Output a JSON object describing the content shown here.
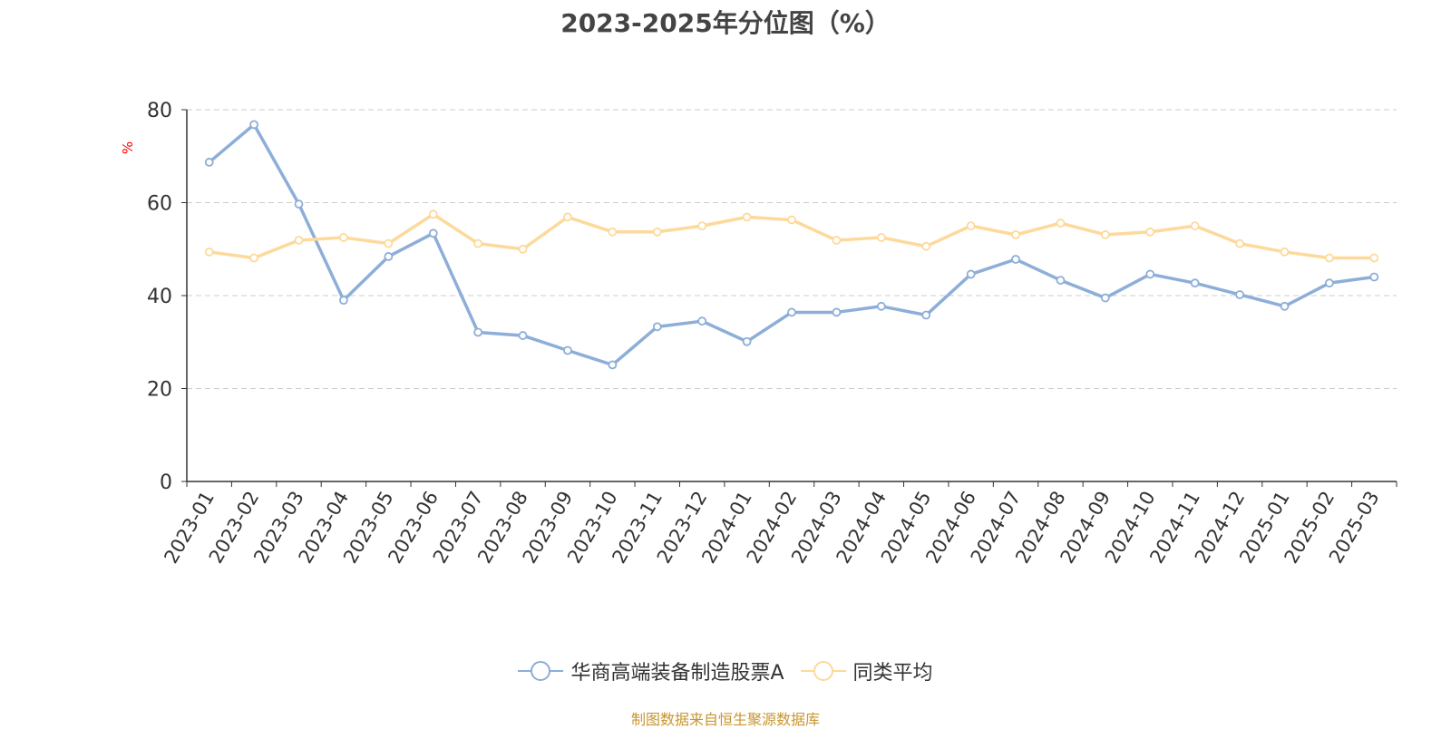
{
  "chart_data": {
    "type": "line",
    "title": "2023-2025年分位图（%）",
    "ylabel": "%",
    "ylim": [
      0,
      80
    ],
    "yticks": [
      "0",
      "20",
      "40",
      "60",
      "80"
    ],
    "grid": true,
    "legend_position": "bottom",
    "categories": [
      "2023-01",
      "2023-02",
      "2023-03",
      "2023-04",
      "2023-05",
      "2023-06",
      "2023-07",
      "2023-08",
      "2023-09",
      "2023-10",
      "2023-11",
      "2023-12",
      "2024-01",
      "2024-02",
      "2024-03",
      "2024-04",
      "2024-05",
      "2024-06",
      "2024-07",
      "2024-08",
      "2024-09",
      "2024-10",
      "2024-11",
      "2024-12",
      "2025-01",
      "2025-02",
      "2025-03"
    ],
    "series": [
      {
        "name": "华商高端装备制造股票A",
        "color": "#8daed8",
        "values": [
          68.7,
          76.8,
          59.7,
          39.0,
          48.4,
          53.4,
          32.1,
          31.4,
          28.2,
          25.1,
          33.3,
          34.5,
          30.1,
          36.4,
          36.4,
          37.7,
          35.8,
          44.6,
          47.8,
          43.3,
          39.5,
          44.6,
          42.7,
          40.2,
          37.7,
          42.7,
          44.0
        ]
      },
      {
        "name": "同类平均",
        "color": "#fdd99b",
        "values": [
          49.4,
          48.1,
          51.9,
          52.5,
          51.2,
          57.5,
          51.2,
          50.0,
          56.9,
          53.7,
          53.7,
          55.0,
          56.9,
          56.3,
          51.9,
          52.5,
          50.6,
          55.0,
          53.1,
          55.6,
          53.1,
          53.7,
          55.0,
          51.2,
          49.4,
          48.1,
          48.1
        ]
      }
    ]
  },
  "footer": {
    "source": "制图数据来自恒生聚源数据库"
  },
  "colors": {
    "axis": "#333333",
    "grid": "#cccccc",
    "ylabel": "#ff0000",
    "title": "#444444",
    "source": "#c8962e"
  }
}
